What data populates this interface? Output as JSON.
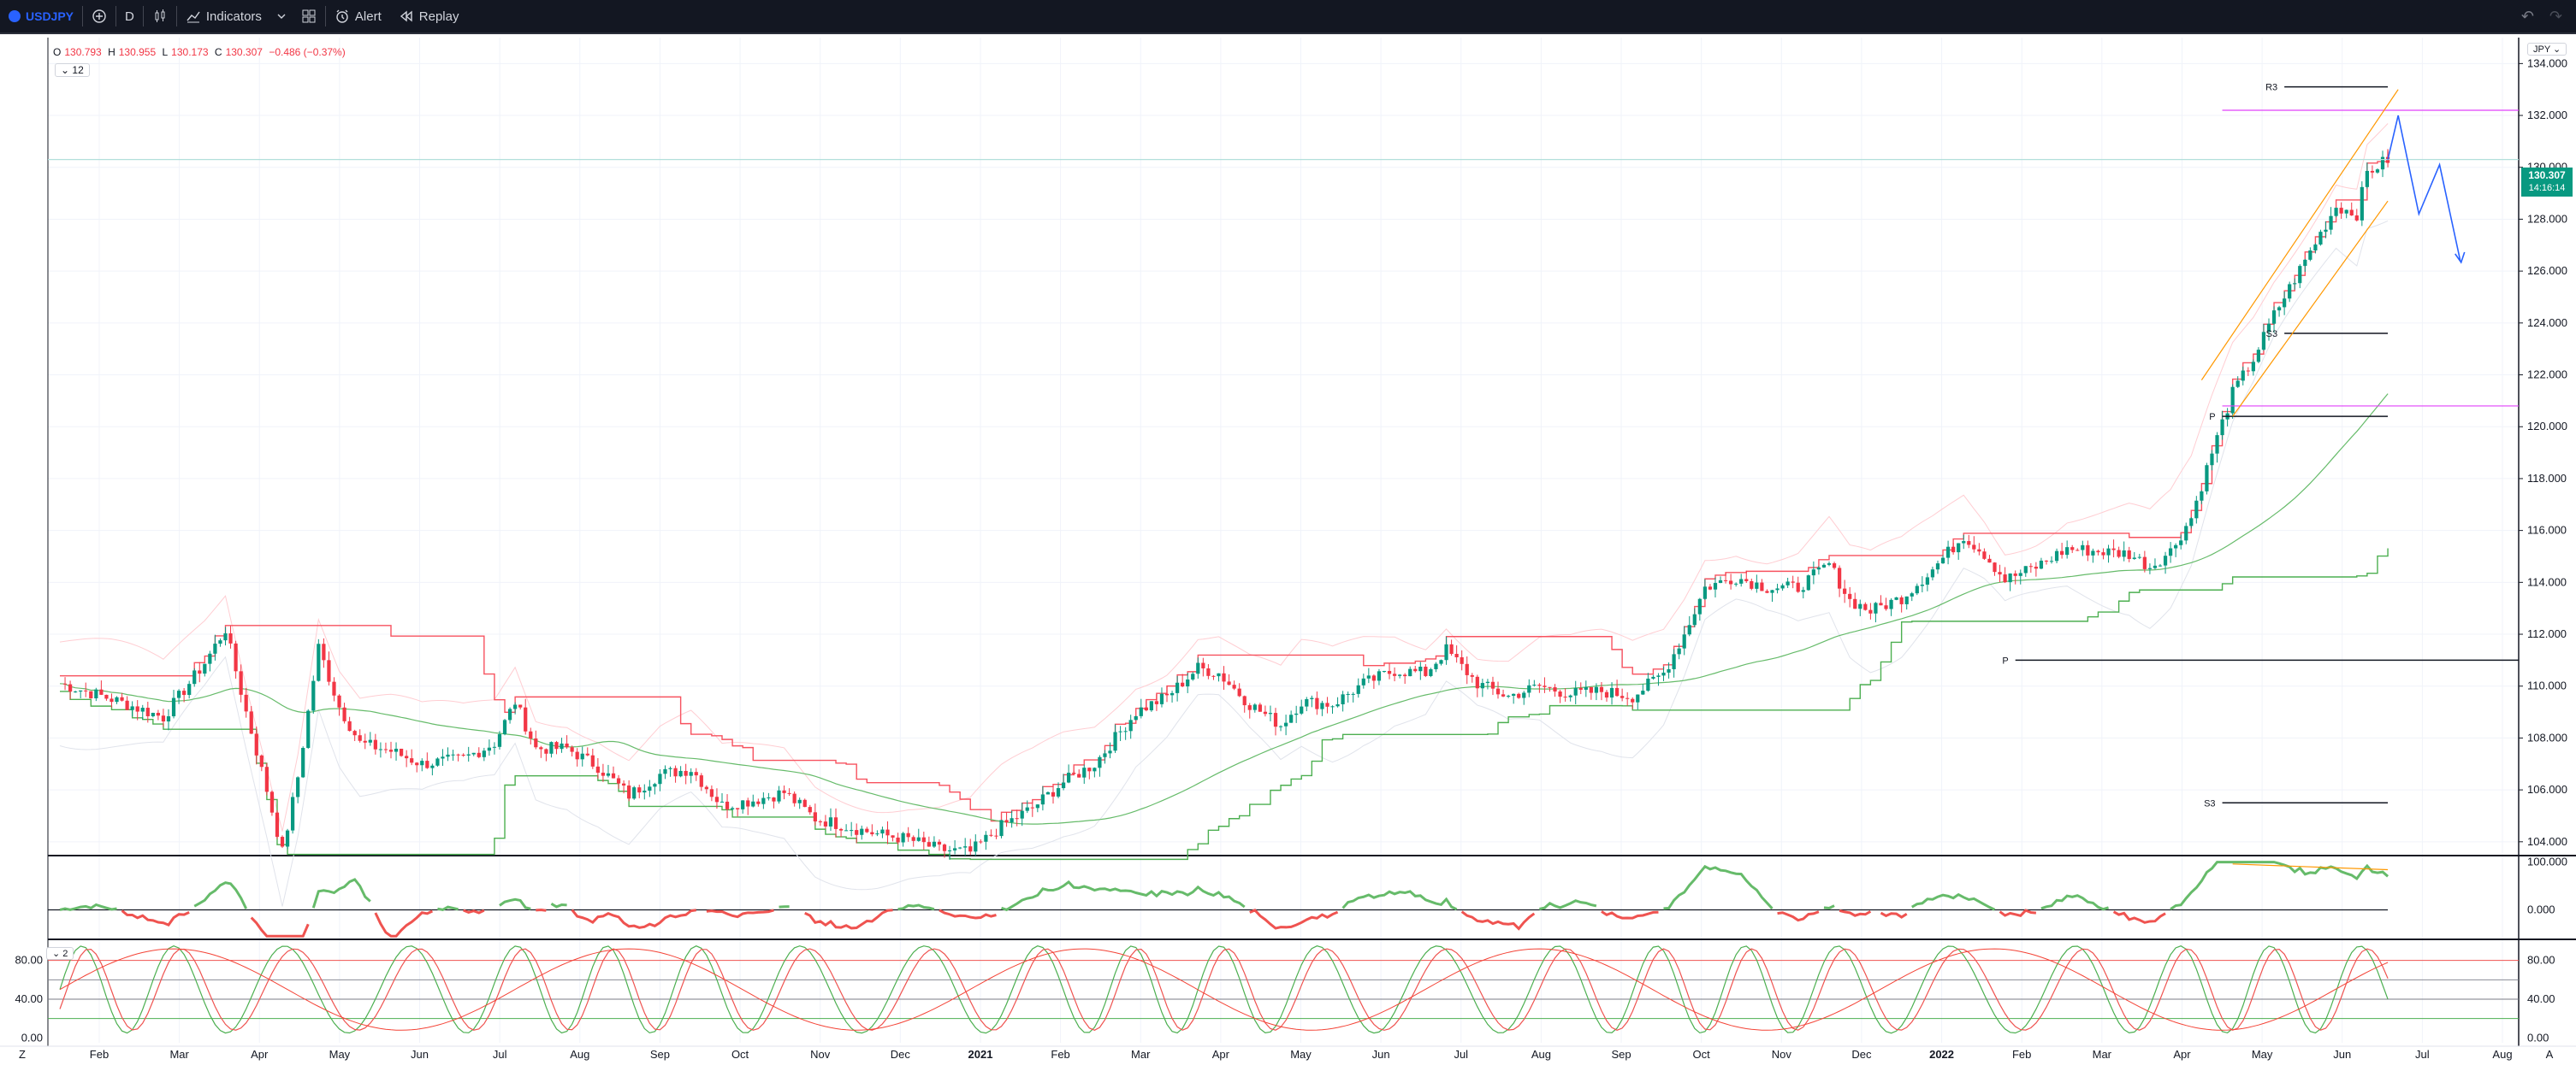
{
  "toolbar": {
    "symbol": "USDJPY",
    "interval": "D",
    "indicators_label": "Indicators",
    "alert_label": "Alert",
    "replay_label": "Replay"
  },
  "legend": {
    "open_key": "O",
    "open": "130.793",
    "high_key": "H",
    "high": "130.955",
    "low_key": "L",
    "low": "130.173",
    "close_key": "C",
    "close": "130.307",
    "change": "−0.486 (−0.37%)",
    "indicator_count": "12",
    "pane3_count": "2"
  },
  "currency": "JPY",
  "price_tag": {
    "price": "130.307",
    "countdown": "14:16:14"
  },
  "pivot_labels": {
    "r3": "R3",
    "p": "P",
    "s3": "S3"
  },
  "colors": {
    "up": "#089981",
    "down": "#f23645",
    "accent": "#2962ff",
    "magenta": "#e040fb",
    "orange": "#ff9800"
  },
  "chart_data": {
    "type": "candlestick",
    "symbol": "USDJPY",
    "interval": "D",
    "main_y_ticks": [
      "134.000",
      "132.000",
      "130.000",
      "128.000",
      "126.000",
      "124.000",
      "122.000",
      "120.000",
      "118.000",
      "116.000",
      "114.000",
      "112.000",
      "110.000",
      "108.000",
      "106.000",
      "104.000"
    ],
    "main_y_range": [
      103.5,
      135.0
    ],
    "x_ticks": [
      "Feb",
      "Mar",
      "Apr",
      "May",
      "Jun",
      "Jul",
      "Aug",
      "Sep",
      "Oct",
      "Nov",
      "Dec",
      "2021",
      "Feb",
      "Mar",
      "Apr",
      "May",
      "Jun",
      "Jul",
      "Aug",
      "Sep",
      "Oct",
      "Nov",
      "Dec",
      "2022",
      "Feb",
      "Mar",
      "Apr",
      "May",
      "Jun",
      "Jul",
      "Aug"
    ],
    "price_path": [
      [
        0,
        110.1
      ],
      [
        10,
        109.5
      ],
      [
        20,
        108.8
      ],
      [
        28,
        110.9
      ],
      [
        32,
        112.2
      ],
      [
        36,
        109.0
      ],
      [
        40,
        106.0
      ],
      [
        43,
        103.6
      ],
      [
        46,
        106.5
      ],
      [
        50,
        111.5
      ],
      [
        54,
        109.2
      ],
      [
        58,
        107.8
      ],
      [
        64,
        107.5
      ],
      [
        70,
        107.0
      ],
      [
        78,
        107.2
      ],
      [
        84,
        107.8
      ],
      [
        88,
        109.4
      ],
      [
        92,
        107.6
      ],
      [
        98,
        107.6
      ],
      [
        104,
        106.9
      ],
      [
        110,
        105.8
      ],
      [
        116,
        106.6
      ],
      [
        122,
        106.8
      ],
      [
        128,
        105.4
      ],
      [
        134,
        105.6
      ],
      [
        140,
        105.9
      ],
      [
        146,
        104.9
      ],
      [
        152,
        104.6
      ],
      [
        158,
        104.3
      ],
      [
        164,
        104.1
      ],
      [
        170,
        103.7
      ],
      [
        176,
        103.6
      ],
      [
        182,
        104.6
      ],
      [
        188,
        105.3
      ],
      [
        194,
        106.3
      ],
      [
        200,
        107.0
      ],
      [
        208,
        109.0
      ],
      [
        214,
        109.6
      ],
      [
        220,
        110.7
      ],
      [
        224,
        110.5
      ],
      [
        230,
        109.3
      ],
      [
        236,
        108.5
      ],
      [
        240,
        109.4
      ],
      [
        246,
        109.3
      ],
      [
        252,
        110.1
      ],
      [
        258,
        110.6
      ],
      [
        264,
        110.5
      ],
      [
        268,
        111.4
      ],
      [
        274,
        110.1
      ],
      [
        280,
        109.6
      ],
      [
        286,
        110.0
      ],
      [
        292,
        109.7
      ],
      [
        298,
        109.8
      ],
      [
        304,
        109.6
      ],
      [
        310,
        110.5
      ],
      [
        314,
        112.0
      ],
      [
        318,
        113.8
      ],
      [
        324,
        114.2
      ],
      [
        330,
        113.8
      ],
      [
        336,
        113.8
      ],
      [
        342,
        114.7
      ],
      [
        346,
        113.3
      ],
      [
        350,
        112.9
      ],
      [
        356,
        113.4
      ],
      [
        362,
        114.5
      ],
      [
        368,
        115.8
      ],
      [
        372,
        115.1
      ],
      [
        376,
        114.1
      ],
      [
        382,
        114.6
      ],
      [
        388,
        115.3
      ],
      [
        394,
        115.2
      ],
      [
        400,
        115.1
      ],
      [
        404,
        114.6
      ],
      [
        408,
        115.2
      ],
      [
        412,
        116.5
      ],
      [
        416,
        119.0
      ],
      [
        420,
        121.3
      ],
      [
        424,
        122.6
      ],
      [
        428,
        124.3
      ],
      [
        432,
        125.7
      ],
      [
        436,
        127.1
      ],
      [
        440,
        128.5
      ],
      [
        444,
        128.2
      ],
      [
        446,
        129.8
      ],
      [
        450,
        130.3
      ]
    ],
    "projection_path": [
      [
        450,
        130.3
      ],
      [
        452,
        132.0
      ],
      [
        456,
        128.2
      ],
      [
        460,
        130.1
      ],
      [
        464,
        126.4
      ]
    ],
    "pivot_levels": {
      "R3": {
        "value": 133.1,
        "x_range": [
          430,
          450
        ]
      },
      "S3_upper": {
        "value": 123.6,
        "x_range": [
          430,
          450
        ]
      },
      "P_2022": {
        "value": 120.4,
        "x_range": [
          418,
          450
        ]
      },
      "P_2021": {
        "value": 111.0,
        "x_range": [
          378,
          500
        ]
      },
      "S3_lower": {
        "value": 105.5,
        "x_range": [
          418,
          450
        ]
      }
    },
    "horizontal_lines": [
      {
        "name": "magenta-upper",
        "value": 132.2
      },
      {
        "name": "magenta-lower",
        "value": 120.8
      },
      {
        "name": "green-level",
        "value": 130.3
      }
    ],
    "pane2": {
      "y_ticks": [
        "100.000",
        "0.000"
      ],
      "y_range": [
        -60,
        110
      ],
      "zero_line": 0
    },
    "pane3": {
      "y_ticks": [
        "80.00",
        "40.00",
        "0.00"
      ],
      "y_range": [
        -5,
        100
      ],
      "bands": [
        80,
        40,
        20
      ]
    }
  }
}
